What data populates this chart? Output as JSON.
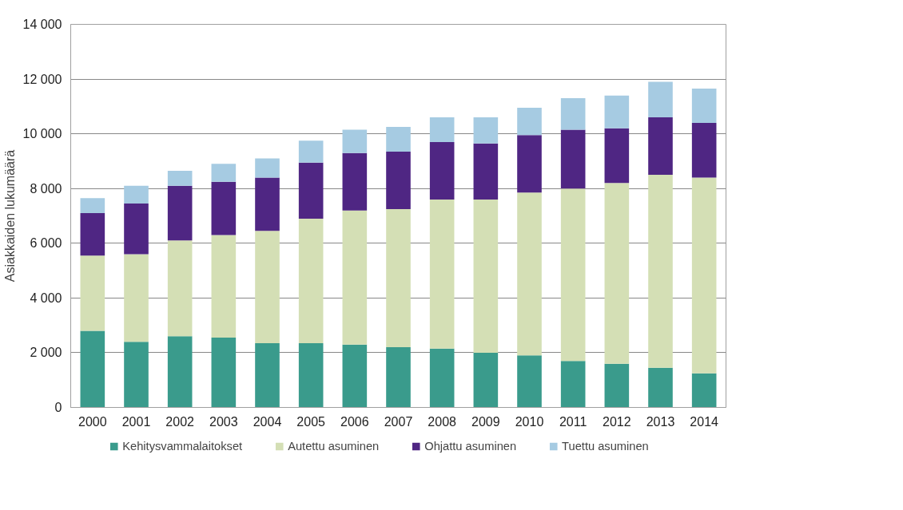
{
  "chart_data": {
    "type": "bar",
    "stacked": true,
    "ylabel": "Asiakkaiden lukumäärä",
    "categories": [
      "2000",
      "2001",
      "2002",
      "2003",
      "2004",
      "2005",
      "2006",
      "2007",
      "2008",
      "2009",
      "2010",
      "2011",
      "2012",
      "2013",
      "2014"
    ],
    "series": [
      {
        "name": "Kehitysvammalaitokset",
        "color": "#3a9b8c",
        "values": [
          2800,
          2400,
          2600,
          2550,
          2350,
          2350,
          2300,
          2200,
          2150,
          2000,
          1900,
          1700,
          1600,
          1450,
          1250
        ]
      },
      {
        "name": "Autettu asuminen",
        "color": "#d4dfb5",
        "values": [
          2750,
          3200,
          3500,
          3750,
          4100,
          4550,
          4900,
          5050,
          5450,
          5600,
          5950,
          6300,
          6600,
          7050,
          7150
        ]
      },
      {
        "name": "Ohjattu asuminen",
        "color": "#4f2683",
        "values": [
          1550,
          1850,
          2000,
          1950,
          1950,
          2050,
          2100,
          2100,
          2100,
          2050,
          2100,
          2150,
          2000,
          2100,
          2000
        ]
      },
      {
        "name": "Tuettu asuminen",
        "color": "#a6cbe2",
        "values": [
          550,
          650,
          550,
          650,
          700,
          800,
          850,
          900,
          900,
          950,
          1000,
          1150,
          1200,
          1300,
          1250
        ]
      }
    ],
    "ylim": [
      0,
      14000
    ],
    "yticks": [
      0,
      {
        "value": 2000,
        "label": "2 000"
      },
      {
        "value": 4000,
        "label": "4 000"
      },
      {
        "value": 6000,
        "label": "6 000"
      },
      {
        "value": 8000,
        "label": "8 000"
      },
      {
        "value": 10000,
        "label": "10 000"
      },
      {
        "value": 12000,
        "label": "12 000"
      },
      {
        "value": 14000,
        "label": "14 000"
      }
    ],
    "grid": "y",
    "legend": "bottom"
  }
}
